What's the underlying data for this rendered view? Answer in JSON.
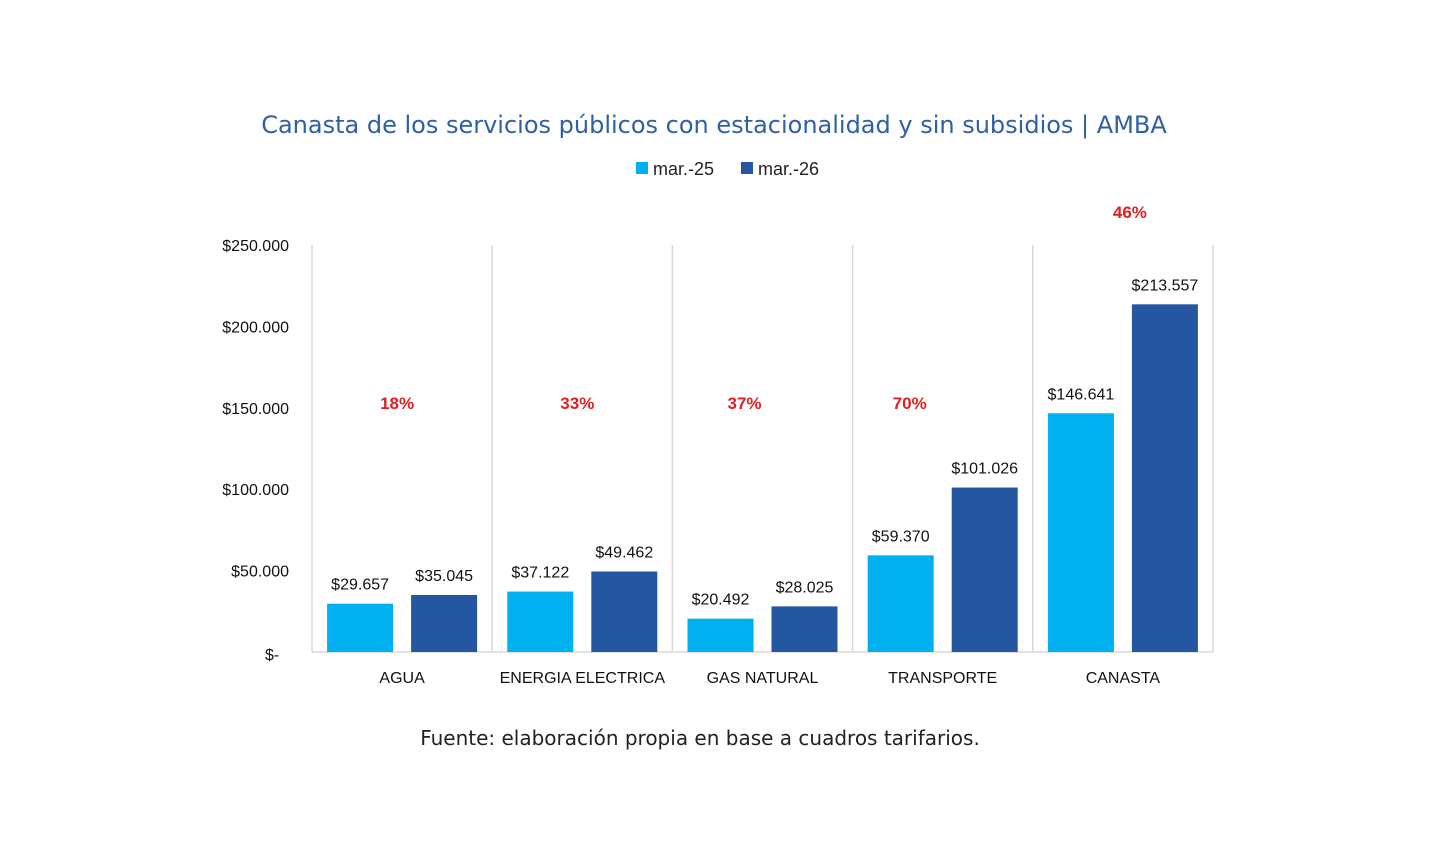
{
  "chart_data": {
    "type": "bar",
    "title": "Canasta de los servicios públicos con estacionalidad y sin subsidios | AMBA",
    "categories": [
      "AGUA",
      "ENERGIA ELECTRICA",
      "GAS NATURAL",
      "TRANSPORTE",
      "CANASTA"
    ],
    "series": [
      {
        "name": "mar.-25",
        "color": "#00b0f0",
        "values": [
          29657,
          37122,
          20492,
          59370,
          146641
        ],
        "labels": [
          "$29.657",
          "$37.122",
          "$20.492",
          "$59.370",
          "$146.641"
        ]
      },
      {
        "name": "mar.-26",
        "color": "#2557a0",
        "values": [
          35045,
          49462,
          28025,
          101026,
          213557
        ],
        "labels": [
          "$35.045",
          "$49.462",
          "$28.025",
          "$101.026",
          "$213.557"
        ]
      }
    ],
    "annotations": [
      "18%",
      "33%",
      "37%",
      "70%",
      "46%"
    ],
    "annotation_color": "#e02020",
    "ylim": [
      0,
      250000
    ],
    "yticks": [
      0,
      50000,
      100000,
      150000,
      200000,
      250000
    ],
    "ytick_labels": [
      "$-",
      "$50.000",
      "$100.000",
      "$150.000",
      "$200.000",
      "$250.000"
    ],
    "xlabel": "",
    "ylabel": "",
    "grid": "vertical category separators",
    "legend": "top-center",
    "source_note": "Fuente: elaboración propia en base a cuadros tarifarios."
  }
}
